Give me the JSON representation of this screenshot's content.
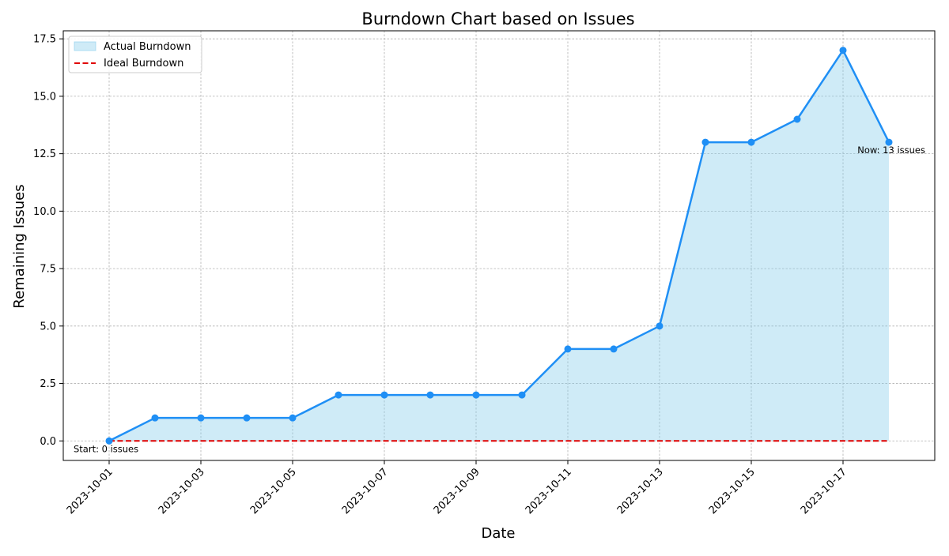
{
  "chart_data": {
    "type": "line",
    "title": "Burndown Chart based on Issues",
    "xlabel": "Date",
    "ylabel": "Remaining Issues",
    "x": [
      "2023-10-01",
      "2023-10-02",
      "2023-10-03",
      "2023-10-04",
      "2023-10-05",
      "2023-10-06",
      "2023-10-07",
      "2023-10-08",
      "2023-10-09",
      "2023-10-10",
      "2023-10-11",
      "2023-10-12",
      "2023-10-13",
      "2023-10-14",
      "2023-10-15",
      "2023-10-16",
      "2023-10-17",
      "2023-10-18"
    ],
    "xticks": [
      "2023-10-01",
      "2023-10-03",
      "2023-10-05",
      "2023-10-07",
      "2023-10-09",
      "2023-10-11",
      "2023-10-13",
      "2023-10-15",
      "2023-10-17"
    ],
    "xlim": [
      "2023-09-30",
      "2023-10-19"
    ],
    "yticks": [
      "0.0",
      "2.5",
      "5.0",
      "7.5",
      "10.0",
      "12.5",
      "15.0",
      "17.5"
    ],
    "ylim": [
      -0.85,
      17.85
    ],
    "grid": true,
    "legend_position": "top-left",
    "series": [
      {
        "name": "Actual Burndown",
        "values": [
          0,
          1,
          1,
          1,
          1,
          2,
          2,
          2,
          2,
          2,
          4,
          4,
          5,
          13,
          13,
          14,
          17,
          13
        ],
        "color": "#1f8ff5",
        "fill_color": "#87ceeb",
        "style": "solid-line-with-markers-and-area"
      },
      {
        "name": "Ideal Burndown",
        "values": [
          0,
          0,
          0,
          0,
          0,
          0,
          0,
          0,
          0,
          0,
          0,
          0,
          0,
          0,
          0,
          0,
          0,
          0
        ],
        "color": "#e00000",
        "style": "dashed"
      }
    ],
    "annotations": [
      {
        "text": "Start: 0 issues",
        "x": "2023-10-01",
        "y": 0
      },
      {
        "text": "Now: 13 issues",
        "x": "2023-10-18",
        "y": 13
      }
    ]
  }
}
